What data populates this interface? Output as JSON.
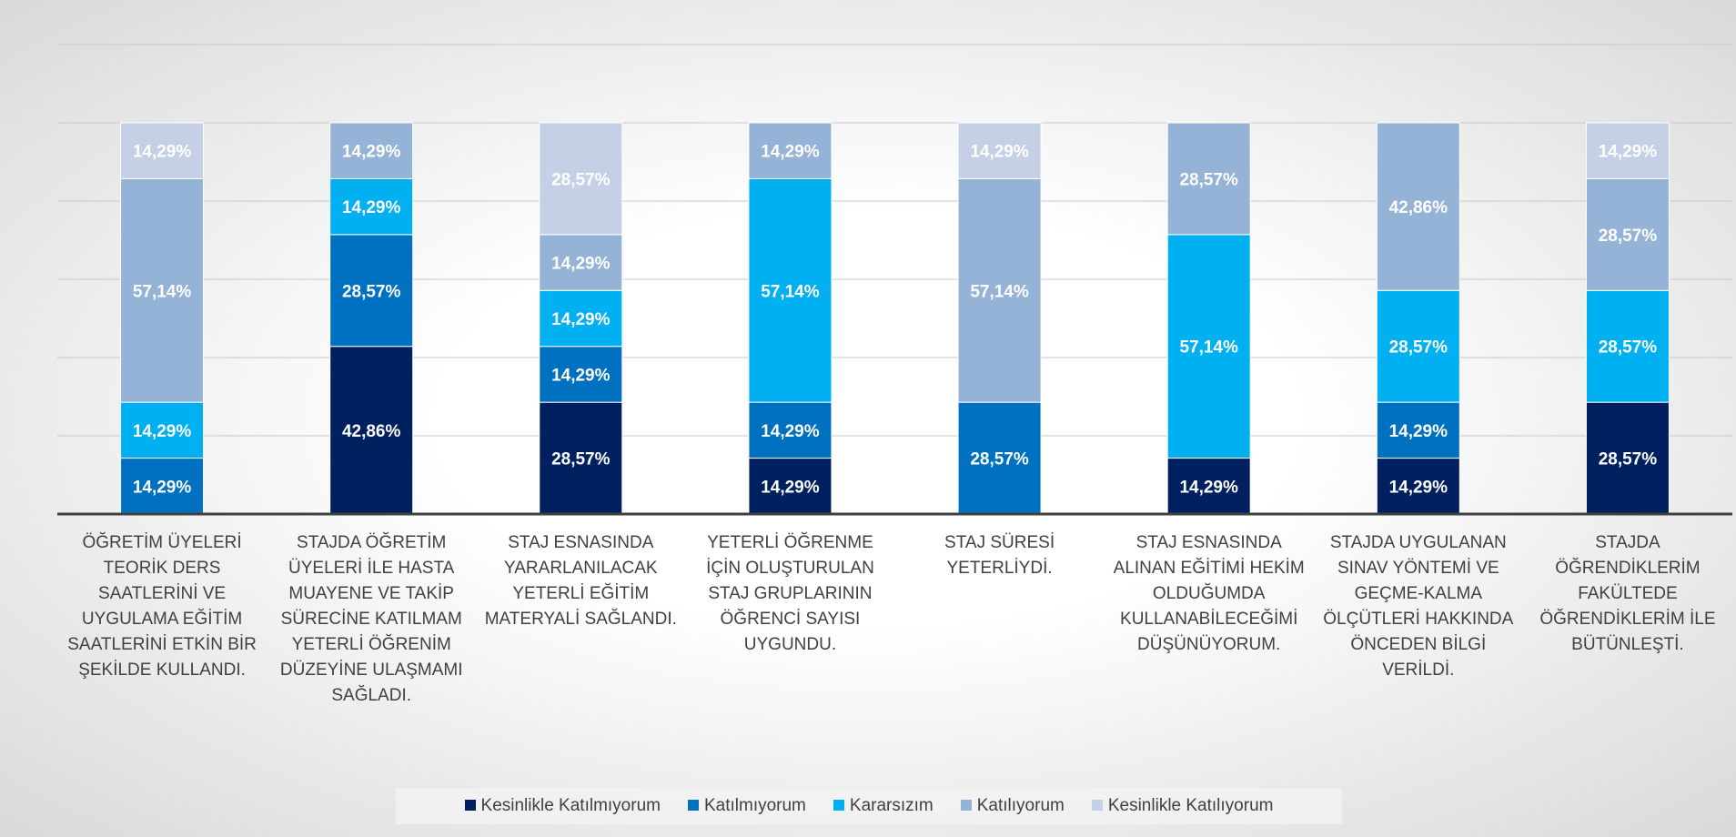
{
  "chart_data": {
    "type": "stacked_bar",
    "categories": [
      "ÖĞRETİM ÜYELERİ TEORİK DERS SAATLERİNİ VE UYGULAMA EĞİTİM SAATLERİNİ ETKİN BİR ŞEKİLDE KULLANDI.",
      "STAJDA ÖĞRETİM ÜYELERİ İLE HASTA MUAYENE VE TAKİP SÜRECİNE KATILMAM YETERLİ ÖĞRENİM DÜZEYİNE ULAŞMAMI SAĞLADI.",
      "STAJ ESNASINDA YARARLANILACAK YETERLİ EĞİTİM MATERYALİ SAĞLANDI.",
      "YETERLİ ÖĞRENME İÇİN OLUŞTURULAN STAJ GRUPLARININ ÖĞRENCİ SAYISI UYGUNDU.",
      "STAJ SÜRESİ YETERLİYDİ.",
      "STAJ ESNASINDA ALINAN EĞİTİMİ HEKİM OLDUĞUMDA KULLANABİLECEĞİMİ DÜŞÜNÜYORUM.",
      "STAJDA UYGULANAN SINAV YÖNTEMİ VE GEÇME-KALMA ÖLÇÜTLERİ HAKKINDA ÖNCEDEN BİLGİ VERİLDİ.",
      "STAJDA ÖĞRENDİKLERİM FAKÜLTEDE ÖĞRENDİKLERİM İLE BÜTÜNLEŞTİ."
    ],
    "series": [
      {
        "name": "Kesinlikle Katılmıyorum",
        "color": "#002060",
        "values": [
          0,
          42.86,
          28.57,
          14.29,
          0,
          14.29,
          14.29,
          28.57
        ],
        "value_labels": [
          null,
          "42,86%",
          "28,57%",
          "14,29%",
          null,
          "14,29%",
          "14,29%",
          "28,57%"
        ]
      },
      {
        "name": "Katılmıyorum",
        "color": "#0070c0",
        "values": [
          14.29,
          28.57,
          14.29,
          14.29,
          28.57,
          0,
          14.29,
          0
        ],
        "value_labels": [
          "14,29%",
          "28,57%",
          "14,29%",
          "14,29%",
          "28,57%",
          null,
          "14,29%",
          null
        ]
      },
      {
        "name": "Kararsızım",
        "color": "#00b0f0",
        "values": [
          14.29,
          14.29,
          14.29,
          57.14,
          0,
          57.14,
          28.57,
          28.57
        ],
        "value_labels": [
          "14,29%",
          "14,29%",
          "14,29%",
          "57,14%",
          null,
          "57,14%",
          "28,57%",
          "28,57%"
        ]
      },
      {
        "name": "Katılıyorum",
        "color": "#95b3d7",
        "values": [
          57.14,
          14.29,
          14.29,
          14.29,
          57.14,
          28.57,
          42.86,
          28.57
        ],
        "value_labels": [
          "57,14%",
          "14,29%",
          "14,29%",
          "14,29%",
          "57,14%",
          "28,57%",
          "42,86%",
          "28,57%"
        ]
      },
      {
        "name": "Kesinlikle Katılıyorum",
        "color": "#c5d0e6",
        "values": [
          14.29,
          0,
          28.57,
          0,
          14.29,
          0,
          0,
          14.29
        ],
        "value_labels": [
          "14,29%",
          null,
          "28,57%",
          null,
          "14,29%",
          null,
          null,
          "14,29%"
        ]
      }
    ],
    "ylim": [
      0,
      120
    ],
    "yticks": [
      0,
      20,
      40,
      60,
      80,
      100,
      120
    ],
    "grid": true,
    "legend": "bottom"
  }
}
